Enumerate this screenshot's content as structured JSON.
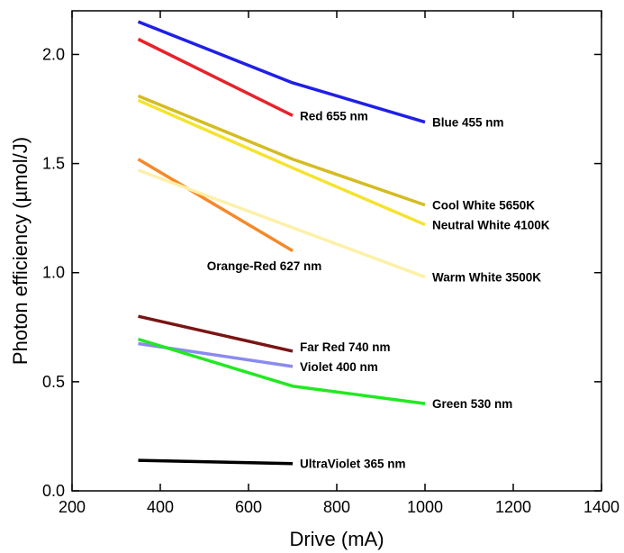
{
  "chart_data": {
    "type": "line",
    "title": "",
    "xlabel": "Drive (mA)",
    "ylabel": "Photon efficiency   (µmol/J)",
    "xlim": [
      200,
      1400
    ],
    "ylim": [
      0.0,
      2.2
    ],
    "xticks": [
      200,
      400,
      600,
      800,
      1000,
      1200,
      1400
    ],
    "yticks": [
      0.0,
      0.5,
      1.0,
      1.5,
      2.0
    ],
    "xtick_labels": [
      "200",
      "400",
      "600",
      "800",
      "1000",
      "1200",
      "1400"
    ],
    "ytick_labels": [
      "0.0",
      "0.5",
      "1.0",
      "1.5",
      "2.0"
    ],
    "grid": false,
    "legend": "inline labels",
    "series": [
      {
        "name": "Blue 455 nm",
        "color": "#1f1fe8",
        "x": [
          350,
          700,
          1000
        ],
        "y": [
          2.15,
          1.87,
          1.69
        ],
        "label_pos": [
          1000,
          1.69
        ]
      },
      {
        "name": "Red 655 nm",
        "color": "#e8222a",
        "x": [
          350,
          700
        ],
        "y": [
          2.07,
          1.72
        ],
        "label_pos": [
          700,
          1.72
        ]
      },
      {
        "name": "Cool White 5650K",
        "color": "#d4bc22",
        "x": [
          350,
          700,
          1000
        ],
        "y": [
          1.81,
          1.52,
          1.31
        ],
        "label_pos": [
          1000,
          1.31
        ]
      },
      {
        "name": "Neutral White 4100K",
        "color": "#f5e32e",
        "x": [
          350,
          700,
          1000
        ],
        "y": [
          1.79,
          1.48,
          1.22
        ],
        "label_pos": [
          1000,
          1.22
        ]
      },
      {
        "name": "Orange-Red 627 nm",
        "color": "#f5892a",
        "x": [
          350,
          700
        ],
        "y": [
          1.52,
          1.1
        ],
        "label_pos": [
          530,
          1.02
        ]
      },
      {
        "name": "Warm White 3500K",
        "color": "#fdf0a8",
        "x": [
          350,
          1000
        ],
        "y": [
          1.47,
          0.98
        ],
        "label_pos": [
          1000,
          0.98
        ]
      },
      {
        "name": "Far Red 740 nm",
        "color": "#7a1414",
        "x": [
          350,
          700
        ],
        "y": [
          0.8,
          0.64
        ],
        "label_pos": [
          700,
          0.66
        ]
      },
      {
        "name": "Violet 400 nm",
        "color": "#8a8af0",
        "x": [
          350,
          700
        ],
        "y": [
          0.675,
          0.57
        ],
        "label_pos": [
          700,
          0.57
        ]
      },
      {
        "name": "Green 530 nm",
        "color": "#22e822",
        "x": [
          350,
          700,
          1000
        ],
        "y": [
          0.695,
          0.48,
          0.4
        ],
        "label_pos": [
          1000,
          0.4
        ]
      },
      {
        "name": "UltraViolet 365 nm",
        "color": "#000000",
        "x": [
          350,
          700
        ],
        "y": [
          0.14,
          0.125
        ],
        "label_pos": [
          700,
          0.125
        ]
      }
    ]
  }
}
